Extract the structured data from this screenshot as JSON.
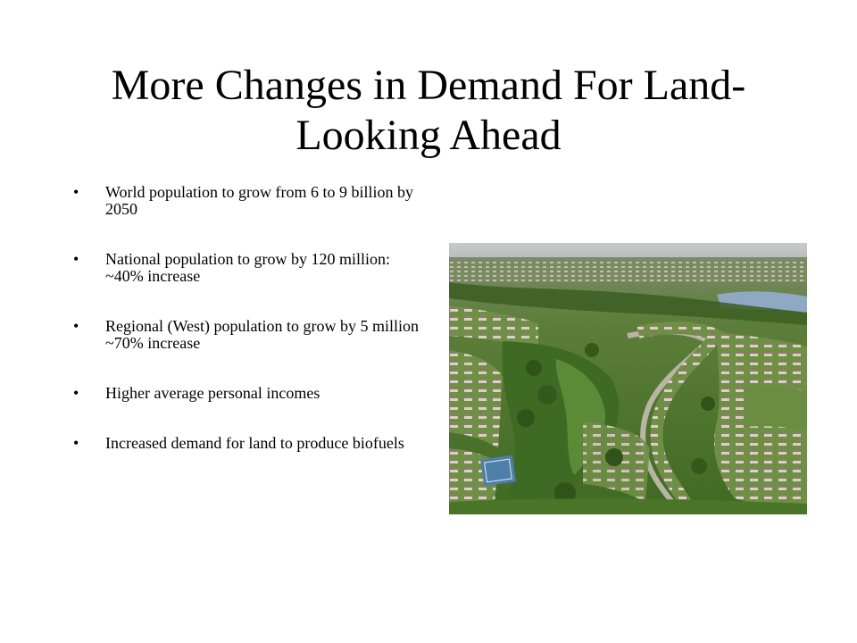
{
  "slide": {
    "title": "More Changes in Demand For Land-Looking Ahead",
    "bullet_symbol": "•",
    "bullets": [
      "World population to grow from 6 to 9 billion by 2050",
      "National population to grow by 120 million:  ~40% increase",
      "Regional (West) population to grow by 5 million  ~70% increase",
      "Higher average personal incomes",
      "Increased demand for land to produce biofuels"
    ]
  },
  "colors": {
    "background": "#ffffff",
    "text": "#000000",
    "sky": "#c9cdd0",
    "grass": "#4f7a2c",
    "water": "#8fa9c4",
    "road": "#b9b4a6",
    "roof": "#8a7d6b",
    "court": "#4f7fa8"
  },
  "image": {
    "icon": "suburban-aerial-photo"
  }
}
